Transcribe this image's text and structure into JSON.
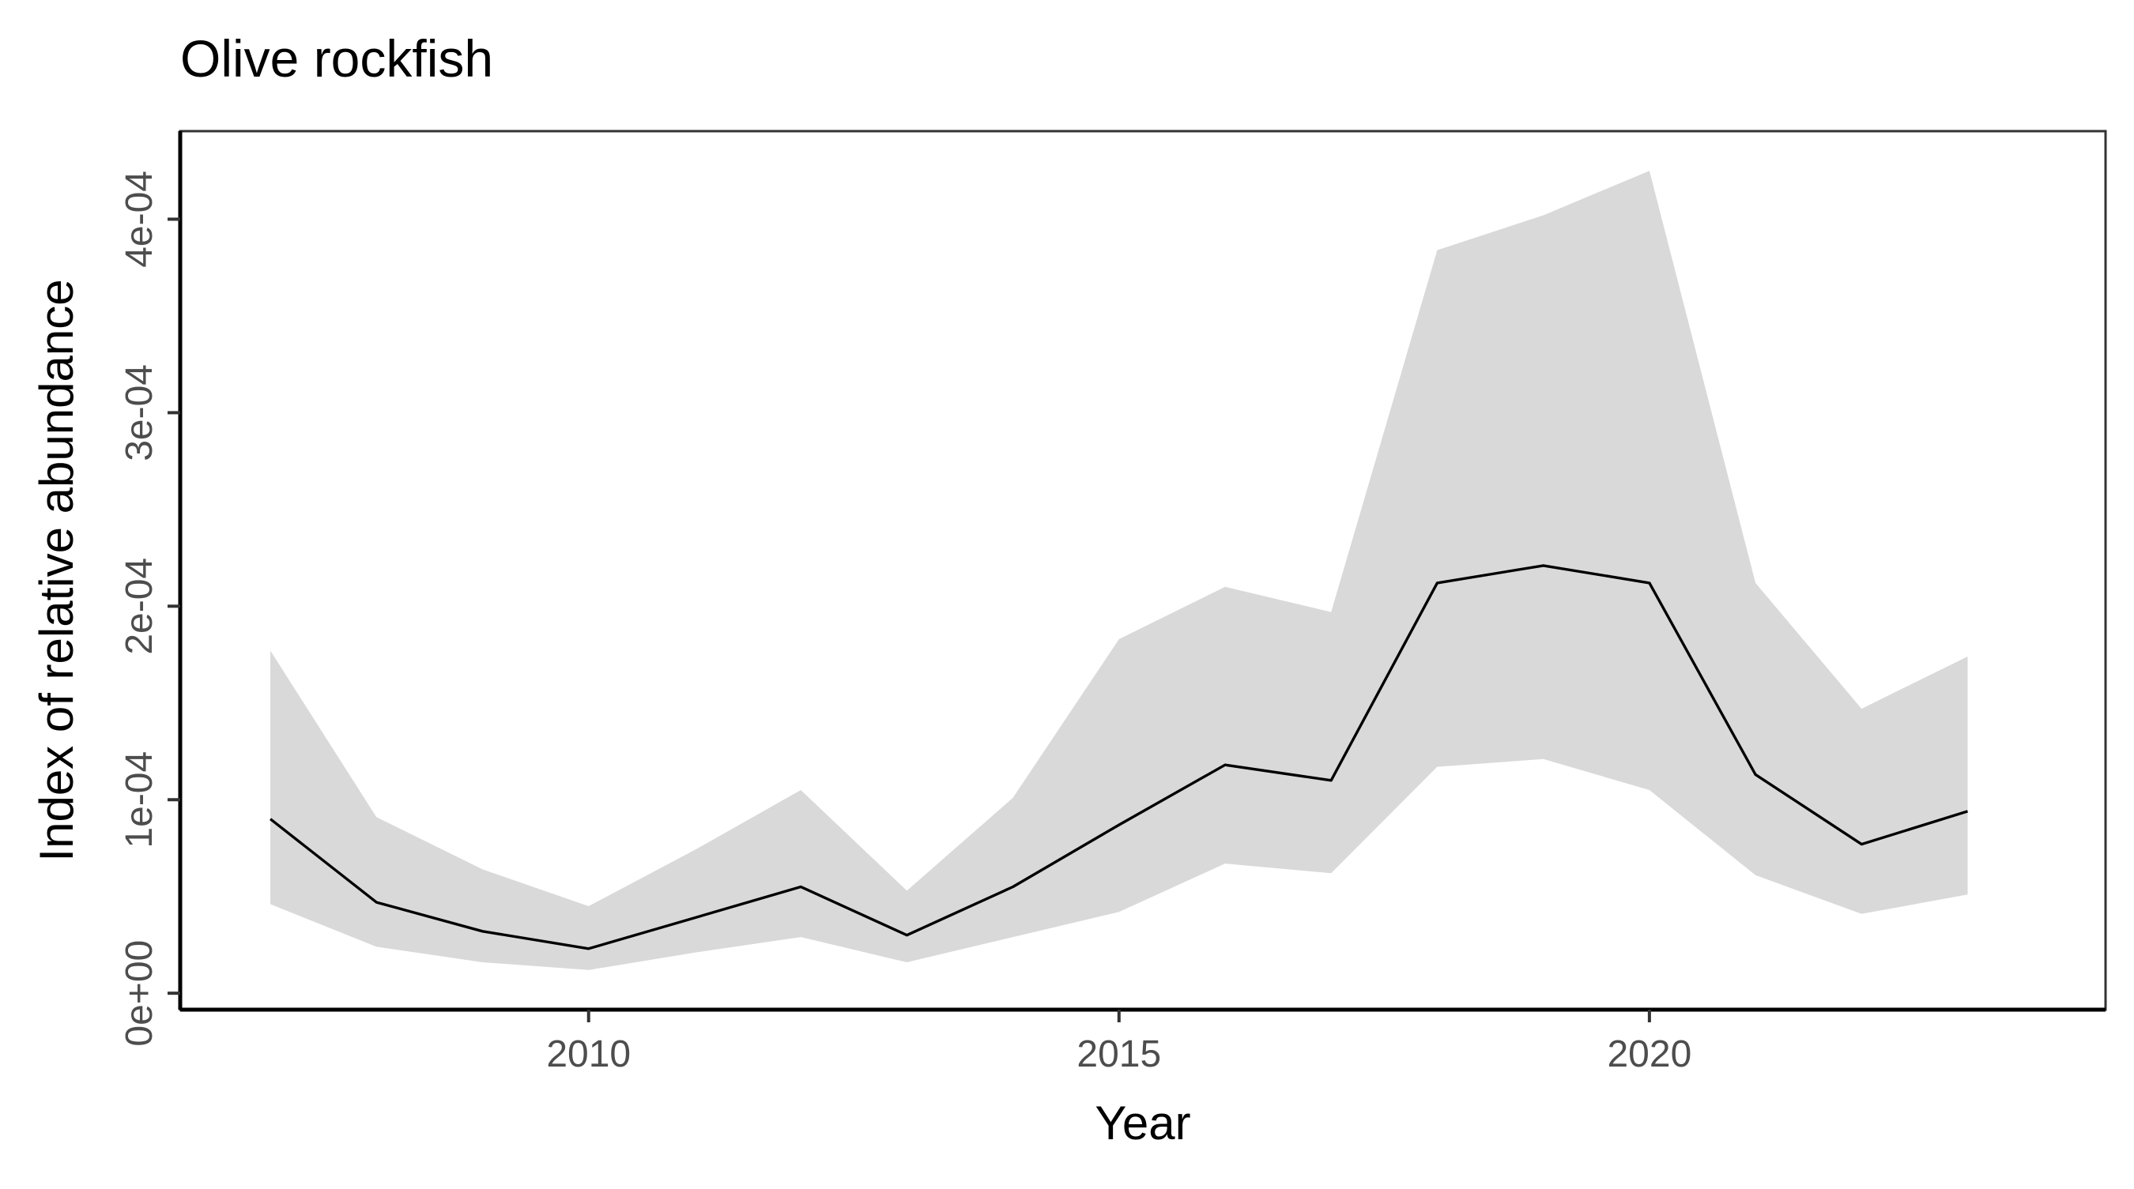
{
  "chart_data": {
    "type": "area",
    "title": "Olive rockfish",
    "xlabel": "Year",
    "ylabel": "Index of relative abundance",
    "x": [
      2007,
      2008,
      2009,
      2010,
      2011,
      2012,
      2013,
      2014,
      2015,
      2016,
      2017,
      2018,
      2019,
      2020,
      2021,
      2022,
      2023
    ],
    "series": [
      {
        "values": [
          9e-05,
          4.7e-05,
          3.2e-05,
          2.3e-05,
          3.9e-05,
          5.5e-05,
          3e-05,
          5.5e-05,
          8.7e-05,
          0.000118,
          0.00011,
          0.000212,
          0.000221,
          0.000212,
          0.000113,
          7.7e-05,
          9.4e-05
        ],
        "color": "#000000"
      }
    ],
    "band": {
      "lower": [
        4.6e-05,
        2.4e-05,
        1.6e-05,
        1.2e-05,
        2.1e-05,
        2.9e-05,
        1.6e-05,
        2.9e-05,
        4.2e-05,
        6.7e-05,
        6.2e-05,
        0.000117,
        0.000121,
        0.000105,
        6.1e-05,
        4.1e-05,
        5.1e-05
      ],
      "upper": [
        0.000177,
        9.1e-05,
        6.4e-05,
        4.5e-05,
        7.4e-05,
        0.000105,
        5.3e-05,
        0.000101,
        0.000183,
        0.00021,
        0.000197,
        0.000384,
        0.000402,
        0.000425,
        0.000212,
        0.000147,
        0.000174
      ],
      "color": "#d9d9d9"
    },
    "x_ticks": [
      2010,
      2015,
      2020
    ],
    "x_tick_labels": [
      "2010",
      "2015",
      "2020"
    ],
    "y_ticks": [
      0,
      0.0001,
      0.0002,
      0.0003,
      0.0004
    ],
    "y_tick_labels": [
      "0e+00",
      "1e-04",
      "2e-04",
      "3e-04",
      "4e-04"
    ],
    "xlim": [
      2006.15,
      2024.3
    ],
    "ylim": [
      -8.5e-06,
      0.0004455
    ],
    "grid": false,
    "legend": "none"
  }
}
